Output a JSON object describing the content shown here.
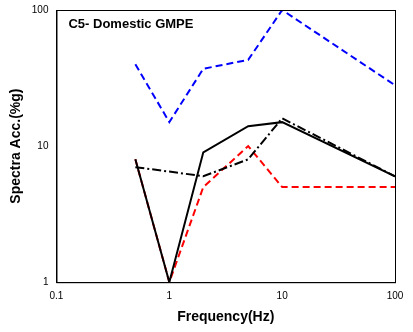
{
  "chart_data": {
    "type": "line",
    "title": "C5- Domestic GMPE",
    "x_label": "Frequency(Hz)",
    "y_label": "Spectra Acc.(%g)",
    "x": [
      0.5,
      1,
      2,
      5,
      10,
      100
    ],
    "series": [
      {
        "color": "#0000ff",
        "line_style": "dashed",
        "values": [
          40,
          15,
          37,
          43,
          100,
          28
        ]
      },
      {
        "color": "#000000",
        "line_style": "solid",
        "values": [
          8,
          1,
          9,
          14,
          15,
          6
        ]
      },
      {
        "color": "#000000",
        "line_style": "dashdot",
        "values": [
          7,
          6.5,
          6,
          8,
          16,
          6
        ]
      },
      {
        "color": "#ff0000",
        "line_style": "dashed",
        "values": [
          8,
          1,
          5,
          10,
          5,
          5
        ]
      }
    ],
    "xlim": [
      0.1,
      100
    ],
    "ylim": [
      1,
      100
    ],
    "xticks": [
      0.1,
      1,
      10,
      100
    ],
    "yticks": [
      1,
      10,
      100
    ],
    "log": true,
    "grid": false
  }
}
